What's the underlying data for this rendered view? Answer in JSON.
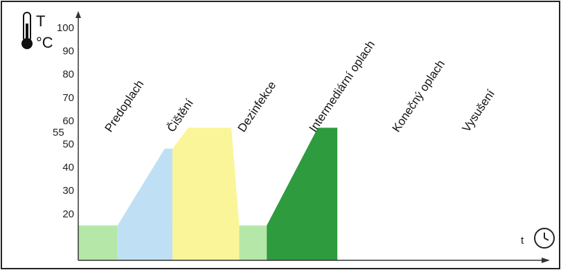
{
  "axis": {
    "unit_t": "T",
    "unit_c": "°C",
    "time_label": "t",
    "clock_icon": "clock-icon",
    "thermometer_icon": "thermometer-icon",
    "y_ticks": [
      100,
      90,
      80,
      70,
      60,
      50,
      40,
      30,
      20
    ],
    "highlight_tick": 90,
    "extra_tick": 55
  },
  "colors": {
    "pre": "#b5e8a8",
    "clean": "#bfe0f4",
    "disinfect": "#fbf59a",
    "inter": "#b5e8a8",
    "final": "#2e9b3e",
    "dry": "#ffffff",
    "tick_highlight": "#e34040",
    "axis": "#333333",
    "frame": "#222222"
  },
  "chart_data": {
    "type": "area",
    "ylim": [
      0,
      100
    ],
    "phases": [
      {
        "name": "Predoplach",
        "key": "pre",
        "points": [
          [
            0,
            15
          ],
          [
            1,
            15
          ]
        ]
      },
      {
        "name": "Čištění",
        "key": "clean",
        "points": [
          [
            1,
            15
          ],
          [
            2.2,
            48
          ],
          [
            2.4,
            48
          ]
        ]
      },
      {
        "name": "Dezinfekce",
        "key": "disinfect",
        "points": [
          [
            2.4,
            48
          ],
          [
            2.8,
            57
          ],
          [
            3.9,
            57
          ],
          [
            4.1,
            15
          ]
        ]
      },
      {
        "name": "Intermediární oplach",
        "key": "inter",
        "points": [
          [
            4.1,
            15
          ],
          [
            4.8,
            15
          ]
        ]
      },
      {
        "name": "Konečný oplach",
        "key": "final",
        "points": [
          [
            4.8,
            15
          ],
          [
            6.1,
            57
          ],
          [
            6.6,
            57
          ]
        ]
      },
      {
        "name": "Vysušení",
        "key": "dry",
        "points": [
          [
            6.6,
            57
          ],
          [
            8.7,
            57
          ]
        ]
      }
    ]
  }
}
